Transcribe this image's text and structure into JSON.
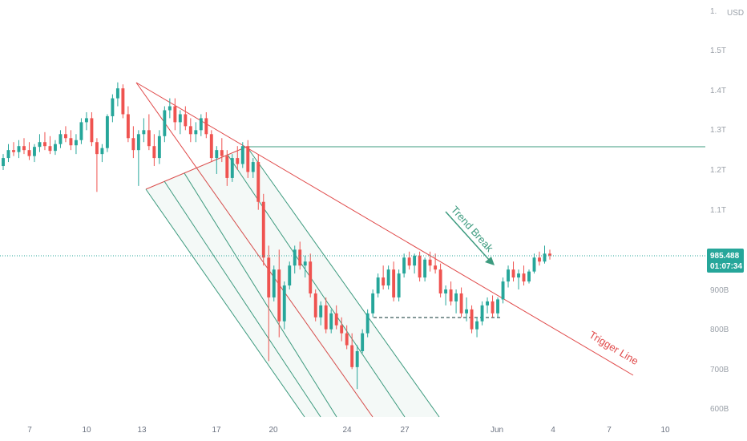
{
  "chart_data": {
    "type": "candlestick",
    "currency": "USD",
    "current_price": "985.488",
    "countdown": "01:07:34",
    "y_ticks": [
      "1.",
      "1.5T",
      "1.4T",
      "1.3T",
      "1.2T",
      "1.1T",
      "1T",
      "900B",
      "800B",
      "700B",
      "600B"
    ],
    "x_ticks": [
      "7",
      "10",
      "13",
      "17",
      "20",
      "24",
      "27",
      "Jun",
      "4",
      "7",
      "10"
    ],
    "annotations": [
      "Trend Break",
      "Trigger Line"
    ],
    "colors": {
      "up": "#26a69a",
      "down": "#ef5350",
      "trend_line": "#e04a4a",
      "channel": "#3d9b7f",
      "horizontal_level": "#3d9b7f",
      "price_tag": "#26a69a"
    },
    "levels": {
      "resistance": 1260,
      "support_dashed": 830,
      "current": 985
    },
    "series": [
      [
        1210,
        1240,
        1200,
        1230
      ],
      [
        1230,
        1265,
        1220,
        1250
      ],
      [
        1250,
        1270,
        1235,
        1245
      ],
      [
        1245,
        1275,
        1230,
        1260
      ],
      [
        1260,
        1280,
        1240,
        1250
      ],
      [
        1250,
        1270,
        1225,
        1235
      ],
      [
        1235,
        1265,
        1220,
        1258
      ],
      [
        1258,
        1290,
        1245,
        1270
      ],
      [
        1270,
        1295,
        1250,
        1260
      ],
      [
        1260,
        1285,
        1240,
        1248
      ],
      [
        1248,
        1275,
        1238,
        1265
      ],
      [
        1265,
        1300,
        1255,
        1290
      ],
      [
        1290,
        1310,
        1270,
        1280
      ],
      [
        1280,
        1300,
        1250,
        1262
      ],
      [
        1262,
        1290,
        1240,
        1275
      ],
      [
        1275,
        1330,
        1265,
        1320
      ],
      [
        1320,
        1345,
        1300,
        1330
      ],
      [
        1330,
        1345,
        1260,
        1270
      ],
      [
        1270,
        1280,
        1145,
        1240
      ],
      [
        1240,
        1265,
        1220,
        1255
      ],
      [
        1255,
        1340,
        1245,
        1335
      ],
      [
        1335,
        1390,
        1320,
        1380
      ],
      [
        1380,
        1420,
        1360,
        1405
      ],
      [
        1405,
        1415,
        1330,
        1340
      ],
      [
        1340,
        1360,
        1270,
        1280
      ],
      [
        1280,
        1310,
        1230,
        1250
      ],
      [
        1250,
        1300,
        1160,
        1290
      ],
      [
        1290,
        1330,
        1270,
        1300
      ],
      [
        1300,
        1340,
        1250,
        1260
      ],
      [
        1260,
        1290,
        1210,
        1230
      ],
      [
        1230,
        1300,
        1215,
        1285
      ],
      [
        1285,
        1360,
        1270,
        1350
      ],
      [
        1350,
        1380,
        1330,
        1360
      ],
      [
        1360,
        1380,
        1300,
        1320
      ],
      [
        1320,
        1350,
        1290,
        1340
      ],
      [
        1340,
        1360,
        1300,
        1310
      ],
      [
        1310,
        1330,
        1270,
        1290
      ],
      [
        1290,
        1320,
        1270,
        1300
      ],
      [
        1300,
        1340,
        1285,
        1330
      ],
      [
        1330,
        1345,
        1280,
        1290
      ],
      [
        1290,
        1300,
        1220,
        1230
      ],
      [
        1230,
        1260,
        1190,
        1250
      ],
      [
        1250,
        1280,
        1220,
        1235
      ],
      [
        1235,
        1250,
        1160,
        1180
      ],
      [
        1180,
        1240,
        1170,
        1230
      ],
      [
        1230,
        1260,
        1200,
        1215
      ],
      [
        1215,
        1270,
        1205,
        1260
      ],
      [
        1260,
        1275,
        1180,
        1195
      ],
      [
        1195,
        1230,
        1180,
        1220
      ],
      [
        1220,
        1240,
        1100,
        1120
      ],
      [
        1120,
        1140,
        960,
        980
      ],
      [
        980,
        1010,
        720,
        880
      ],
      [
        880,
        960,
        870,
        950
      ],
      [
        950,
        1000,
        780,
        820
      ],
      [
        820,
        920,
        800,
        910
      ],
      [
        910,
        970,
        900,
        960
      ],
      [
        960,
        1010,
        940,
        1000
      ],
      [
        1000,
        1020,
        950,
        960
      ],
      [
        960,
        985,
        930,
        970
      ],
      [
        970,
        990,
        880,
        890
      ],
      [
        890,
        900,
        820,
        830
      ],
      [
        830,
        870,
        810,
        860
      ],
      [
        860,
        880,
        790,
        800
      ],
      [
        800,
        850,
        790,
        840
      ],
      [
        840,
        860,
        800,
        810
      ],
      [
        810,
        830,
        770,
        790
      ],
      [
        790,
        810,
        750,
        760
      ],
      [
        760,
        790,
        700,
        705
      ],
      [
        705,
        760,
        650,
        745
      ],
      [
        745,
        800,
        740,
        790
      ],
      [
        790,
        850,
        780,
        840
      ],
      [
        840,
        900,
        830,
        890
      ],
      [
        890,
        940,
        880,
        930
      ],
      [
        930,
        960,
        900,
        910
      ],
      [
        910,
        960,
        900,
        950
      ],
      [
        950,
        970,
        870,
        880
      ],
      [
        880,
        950,
        870,
        940
      ],
      [
        940,
        990,
        930,
        980
      ],
      [
        980,
        995,
        950,
        960
      ],
      [
        960,
        990,
        940,
        985
      ],
      [
        985,
        995,
        920,
        930
      ],
      [
        930,
        980,
        920,
        975
      ],
      [
        975,
        995,
        945,
        960
      ],
      [
        960,
        990,
        940,
        950
      ],
      [
        950,
        965,
        880,
        890
      ],
      [
        890,
        910,
        860,
        900
      ],
      [
        900,
        920,
        860,
        870
      ],
      [
        870,
        900,
        840,
        890
      ],
      [
        890,
        905,
        830,
        840
      ],
      [
        840,
        880,
        820,
        850
      ],
      [
        850,
        860,
        790,
        800
      ],
      [
        800,
        830,
        780,
        820
      ],
      [
        820,
        870,
        810,
        860
      ],
      [
        860,
        880,
        840,
        870
      ],
      [
        870,
        885,
        830,
        840
      ],
      [
        840,
        880,
        830,
        875
      ],
      [
        875,
        930,
        865,
        920
      ],
      [
        920,
        960,
        905,
        950
      ],
      [
        950,
        970,
        920,
        930
      ],
      [
        930,
        950,
        900,
        940
      ],
      [
        940,
        960,
        910,
        920
      ],
      [
        920,
        950,
        915,
        945
      ],
      [
        945,
        990,
        940,
        980
      ],
      [
        980,
        995,
        960,
        970
      ],
      [
        970,
        1010,
        965,
        990
      ],
      [
        990,
        1000,
        975,
        985
      ]
    ]
  }
}
